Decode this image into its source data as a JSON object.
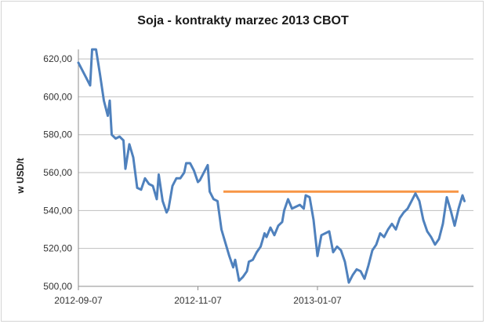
{
  "chart_data": {
    "type": "line",
    "title": "Soja - kontrakty marzec 2013 CBOT",
    "xlabel": "",
    "ylabel": "w USD/t",
    "ylim": [
      500,
      625
    ],
    "yticks": [
      "500,00",
      "520,00",
      "540,00",
      "560,00",
      "580,00",
      "600,00",
      "620,00"
    ],
    "xticks": [
      "2012-09-07",
      "2012-11-07",
      "2013-01-07"
    ],
    "grid": true,
    "colors": {
      "series": "#4f81bd",
      "reference": "#f79646",
      "grid": "#bfbfbf"
    },
    "reference_line": {
      "y": 550,
      "x_start": "2012-11-20",
      "x_end": "2013-03-20"
    },
    "series": [
      {
        "values": [
          [
            "2012-09-07",
            618
          ],
          [
            "2012-09-09",
            614
          ],
          [
            "2012-09-11",
            610
          ],
          [
            "2012-09-13",
            606
          ],
          [
            "2012-09-14",
            625
          ],
          [
            "2012-09-16",
            625
          ],
          [
            "2012-09-18",
            612
          ],
          [
            "2012-09-20",
            598
          ],
          [
            "2012-09-22",
            590
          ],
          [
            "2012-09-23",
            598
          ],
          [
            "2012-09-24",
            580
          ],
          [
            "2012-09-26",
            578
          ],
          [
            "2012-09-28",
            579
          ],
          [
            "2012-09-30",
            577
          ],
          [
            "2012-10-01",
            562
          ],
          [
            "2012-10-03",
            575
          ],
          [
            "2012-10-05",
            568
          ],
          [
            "2012-10-07",
            552
          ],
          [
            "2012-10-09",
            551
          ],
          [
            "2012-10-11",
            557
          ],
          [
            "2012-10-13",
            554
          ],
          [
            "2012-10-15",
            553
          ],
          [
            "2012-10-17",
            546
          ],
          [
            "2012-10-18",
            559
          ],
          [
            "2012-10-20",
            545
          ],
          [
            "2012-10-22",
            539
          ],
          [
            "2012-10-23",
            541
          ],
          [
            "2012-10-25",
            553
          ],
          [
            "2012-10-27",
            557
          ],
          [
            "2012-10-29",
            557
          ],
          [
            "2012-10-31",
            560
          ],
          [
            "2012-11-01",
            565
          ],
          [
            "2012-11-03",
            565
          ],
          [
            "2012-11-05",
            561
          ],
          [
            "2012-11-07",
            555
          ],
          [
            "2012-11-08",
            556
          ],
          [
            "2012-11-10",
            560
          ],
          [
            "2012-11-12",
            564
          ],
          [
            "2012-11-13",
            550
          ],
          [
            "2012-11-15",
            546
          ],
          [
            "2012-11-17",
            545
          ],
          [
            "2012-11-19",
            530
          ],
          [
            "2012-11-21",
            523
          ],
          [
            "2012-11-23",
            516
          ],
          [
            "2012-11-25",
            510
          ],
          [
            "2012-11-26",
            514
          ],
          [
            "2012-11-28",
            503
          ],
          [
            "2012-11-30",
            505
          ],
          [
            "2012-12-02",
            508
          ],
          [
            "2012-12-03",
            513
          ],
          [
            "2012-12-05",
            514
          ],
          [
            "2012-12-07",
            518
          ],
          [
            "2012-12-09",
            521
          ],
          [
            "2012-12-11",
            528
          ],
          [
            "2012-12-12",
            526
          ],
          [
            "2012-12-14",
            531
          ],
          [
            "2012-12-16",
            527
          ],
          [
            "2012-12-18",
            532
          ],
          [
            "2012-12-20",
            534
          ],
          [
            "2012-12-21",
            540
          ],
          [
            "2012-12-23",
            546
          ],
          [
            "2012-12-25",
            541
          ],
          [
            "2012-12-27",
            542
          ],
          [
            "2012-12-29",
            543
          ],
          [
            "2012-12-31",
            541
          ],
          [
            "2013-01-01",
            548
          ],
          [
            "2013-01-03",
            547
          ],
          [
            "2013-01-05",
            535
          ],
          [
            "2013-01-07",
            516
          ],
          [
            "2013-01-09",
            527
          ],
          [
            "2013-01-11",
            528
          ],
          [
            "2013-01-13",
            529
          ],
          [
            "2013-01-15",
            518
          ],
          [
            "2013-01-17",
            521
          ],
          [
            "2013-01-19",
            519
          ],
          [
            "2013-01-21",
            513
          ],
          [
            "2013-01-23",
            502
          ],
          [
            "2013-01-25",
            506
          ],
          [
            "2013-01-27",
            509
          ],
          [
            "2013-01-29",
            508
          ],
          [
            "2013-01-31",
            504
          ],
          [
            "2013-02-02",
            511
          ],
          [
            "2013-02-04",
            519
          ],
          [
            "2013-02-06",
            522
          ],
          [
            "2013-02-08",
            528
          ],
          [
            "2013-02-10",
            526
          ],
          [
            "2013-02-12",
            530
          ],
          [
            "2013-02-14",
            533
          ],
          [
            "2013-02-16",
            530
          ],
          [
            "2013-02-18",
            536
          ],
          [
            "2013-02-20",
            539
          ],
          [
            "2013-02-22",
            541
          ],
          [
            "2013-02-24",
            545
          ],
          [
            "2013-02-26",
            549
          ],
          [
            "2013-02-28",
            545
          ],
          [
            "2013-03-02",
            535
          ],
          [
            "2013-03-04",
            529
          ],
          [
            "2013-03-06",
            526
          ],
          [
            "2013-03-08",
            522
          ],
          [
            "2013-03-10",
            525
          ],
          [
            "2013-03-12",
            533
          ],
          [
            "2013-03-14",
            547
          ],
          [
            "2013-03-16",
            540
          ],
          [
            "2013-03-18",
            532
          ],
          [
            "2013-03-20",
            541
          ],
          [
            "2013-03-22",
            548
          ],
          [
            "2013-03-23",
            545
          ]
        ]
      }
    ]
  }
}
